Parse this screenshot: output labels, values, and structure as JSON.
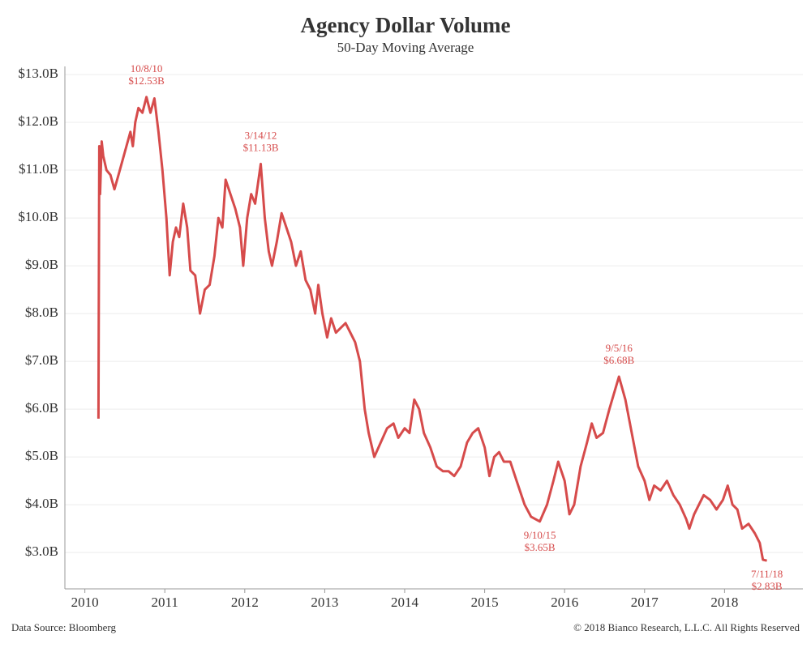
{
  "chart_data": {
    "type": "line",
    "title": "Agency Dollar Volume",
    "subtitle": "50-Day Moving Average",
    "source": "Data Source: Bloomberg",
    "copyright": "© 2018 Bianco Research, L.L.C. All Rights Reserved",
    "x": [
      2010.17,
      2010.18,
      2010.19,
      2010.21,
      2010.23,
      2010.27,
      2010.32,
      2010.37,
      2010.42,
      2010.47,
      2010.52,
      2010.57,
      2010.6,
      2010.63,
      2010.67,
      2010.72,
      2010.77,
      2010.82,
      2010.87,
      2010.92,
      2010.97,
      2011.02,
      2011.06,
      2011.1,
      2011.14,
      2011.18,
      2011.23,
      2011.28,
      2011.32,
      2011.38,
      2011.44,
      2011.5,
      2011.56,
      2011.62,
      2011.67,
      2011.72,
      2011.76,
      2011.82,
      2011.88,
      2011.94,
      2011.98,
      2012.03,
      2012.08,
      2012.13,
      2012.2,
      2012.25,
      2012.3,
      2012.34,
      2012.4,
      2012.46,
      2012.52,
      2012.58,
      2012.64,
      2012.7,
      2012.76,
      2012.82,
      2012.88,
      2012.92,
      2012.97,
      2013.03,
      2013.08,
      2013.14,
      2013.2,
      2013.26,
      2013.32,
      2013.38,
      2013.44,
      2013.5,
      2013.55,
      2013.62,
      2013.7,
      2013.78,
      2013.86,
      2013.92,
      2014.0,
      2014.06,
      2014.12,
      2014.18,
      2014.24,
      2014.32,
      2014.4,
      2014.48,
      2014.55,
      2014.62,
      2014.7,
      2014.78,
      2014.85,
      2014.92,
      2015.0,
      2015.06,
      2015.12,
      2015.18,
      2015.24,
      2015.32,
      2015.4,
      2015.5,
      2015.58,
      2015.69,
      2015.78,
      2015.86,
      2015.92,
      2016.0,
      2016.06,
      2016.12,
      2016.2,
      2016.28,
      2016.34,
      2016.4,
      2016.48,
      2016.56,
      2016.68,
      2016.76,
      2016.84,
      2016.92,
      2017.0,
      2017.06,
      2017.12,
      2017.2,
      2017.28,
      2017.36,
      2017.44,
      2017.52,
      2017.56,
      2017.62,
      2017.68,
      2017.74,
      2017.82,
      2017.9,
      2017.98,
      2018.04,
      2018.1,
      2018.16,
      2018.22,
      2018.3,
      2018.38,
      2018.44,
      2018.48,
      2018.53
    ],
    "series": [
      {
        "name": "Agency Dollar Volume",
        "color": "#d64b4b",
        "values": [
          5.8,
          11.5,
          10.5,
          11.6,
          11.3,
          11.0,
          10.9,
          10.6,
          10.9,
          11.2,
          11.5,
          11.8,
          11.5,
          12.0,
          12.3,
          12.2,
          12.53,
          12.2,
          12.5,
          11.8,
          11.0,
          10.0,
          8.8,
          9.5,
          9.8,
          9.6,
          10.3,
          9.8,
          8.9,
          8.8,
          8.0,
          8.5,
          8.6,
          9.2,
          10.0,
          9.8,
          10.8,
          10.5,
          10.2,
          9.8,
          9.0,
          10.0,
          10.5,
          10.3,
          11.13,
          10.0,
          9.3,
          9.0,
          9.5,
          10.1,
          9.8,
          9.5,
          9.0,
          9.3,
          8.7,
          8.5,
          8.0,
          8.6,
          8.0,
          7.5,
          7.9,
          7.6,
          7.7,
          7.8,
          7.6,
          7.4,
          7.0,
          6.0,
          5.5,
          5.0,
          5.3,
          5.6,
          5.7,
          5.4,
          5.6,
          5.5,
          6.2,
          6.0,
          5.5,
          5.2,
          4.8,
          4.7,
          4.7,
          4.6,
          4.8,
          5.3,
          5.5,
          5.6,
          5.2,
          4.6,
          5.0,
          5.1,
          4.9,
          4.9,
          4.5,
          4.0,
          3.75,
          3.65,
          4.0,
          4.5,
          4.9,
          4.5,
          3.8,
          4.0,
          4.8,
          5.3,
          5.7,
          5.4,
          5.5,
          6.0,
          6.68,
          6.2,
          5.5,
          4.8,
          4.5,
          4.1,
          4.4,
          4.3,
          4.5,
          4.2,
          4.0,
          3.7,
          3.5,
          3.8,
          4.0,
          4.2,
          4.1,
          3.9,
          4.1,
          4.4,
          4.0,
          3.9,
          3.5,
          3.6,
          3.4,
          3.2,
          2.85,
          2.83
        ]
      }
    ],
    "xlim": [
      2009.75,
      2018.98
    ],
    "xticks": [
      2010,
      2011,
      2012,
      2013,
      2014,
      2015,
      2016,
      2017,
      2018
    ],
    "ylim": [
      2.24,
      13.17
    ],
    "yticks": [
      {
        "value": 3,
        "label": "$3.0B"
      },
      {
        "value": 4,
        "label": "$4.0B"
      },
      {
        "value": 5,
        "label": "$5.0B"
      },
      {
        "value": 6,
        "label": "$6.0B"
      },
      {
        "value": 7,
        "label": "$7.0B"
      },
      {
        "value": 8,
        "label": "$8.0B"
      },
      {
        "value": 9,
        "label": "$9.0B"
      },
      {
        "value": 10,
        "label": "$10.0B"
      },
      {
        "value": 11,
        "label": "$11.0B"
      },
      {
        "value": 12,
        "label": "$12.0B"
      },
      {
        "value": 13,
        "label": "$13.0B"
      }
    ],
    "grid": true,
    "annotations": [
      {
        "date": "10/8/10",
        "label": "$12.53B",
        "x": 2010.77,
        "y": 12.53,
        "position": "above"
      },
      {
        "date": "3/14/12",
        "label": "$11.13B",
        "x": 2012.2,
        "y": 11.13,
        "position": "above"
      },
      {
        "date": "9/10/15",
        "label": "$3.65B",
        "x": 2015.69,
        "y": 3.65,
        "position": "below"
      },
      {
        "date": "9/5/16",
        "label": "$6.68B",
        "x": 2016.68,
        "y": 6.68,
        "position": "above"
      },
      {
        "date": "7/11/18",
        "label": "$2.83B",
        "x": 2018.53,
        "y": 2.83,
        "position": "below"
      }
    ]
  }
}
